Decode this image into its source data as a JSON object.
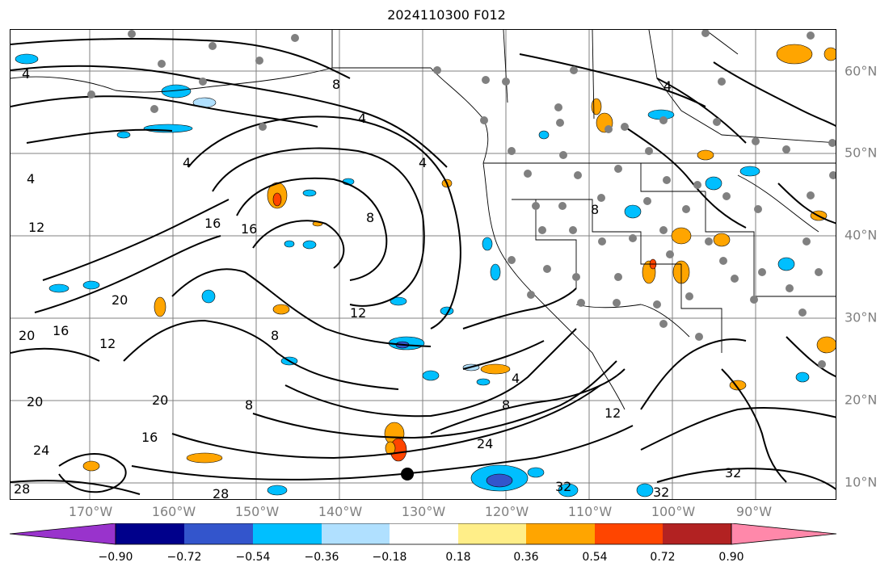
{
  "title": "2024110300 F012",
  "map": {
    "lon_labels": [
      "170°W",
      "160°W",
      "150°W",
      "140°W",
      "130°W",
      "120°W",
      "110°W",
      "100°W",
      "90°W"
    ],
    "lat_labels": [
      "60°N",
      "50°N",
      "40°N",
      "30°N",
      "20°N",
      "10°N"
    ],
    "contour_labels": [
      "4",
      "4",
      "4",
      "4",
      "4",
      "4",
      "4",
      "8",
      "8",
      "8",
      "8",
      "8",
      "8",
      "12",
      "12",
      "12",
      "12",
      "16",
      "16",
      "16",
      "16",
      "20",
      "20",
      "20",
      "20",
      "24",
      "24",
      "28",
      "28",
      "32",
      "32",
      "32"
    ],
    "contour_color": "#000000",
    "grid_color": "#808080",
    "station_marker_color": "#808080"
  },
  "colorbar": {
    "colors": [
      "#9933cc",
      "#00008b",
      "#3355cc",
      "#00bfff",
      "#b0e0ff",
      "#ffffff",
      "#ffee88",
      "#ffa500",
      "#ff4500",
      "#b22222",
      "#ff88aa"
    ],
    "tick_labels": [
      "−0.90",
      "−0.72",
      "−0.54",
      "−0.36",
      "−0.18",
      "0.18",
      "0.36",
      "0.54",
      "0.72",
      "0.90"
    ]
  }
}
